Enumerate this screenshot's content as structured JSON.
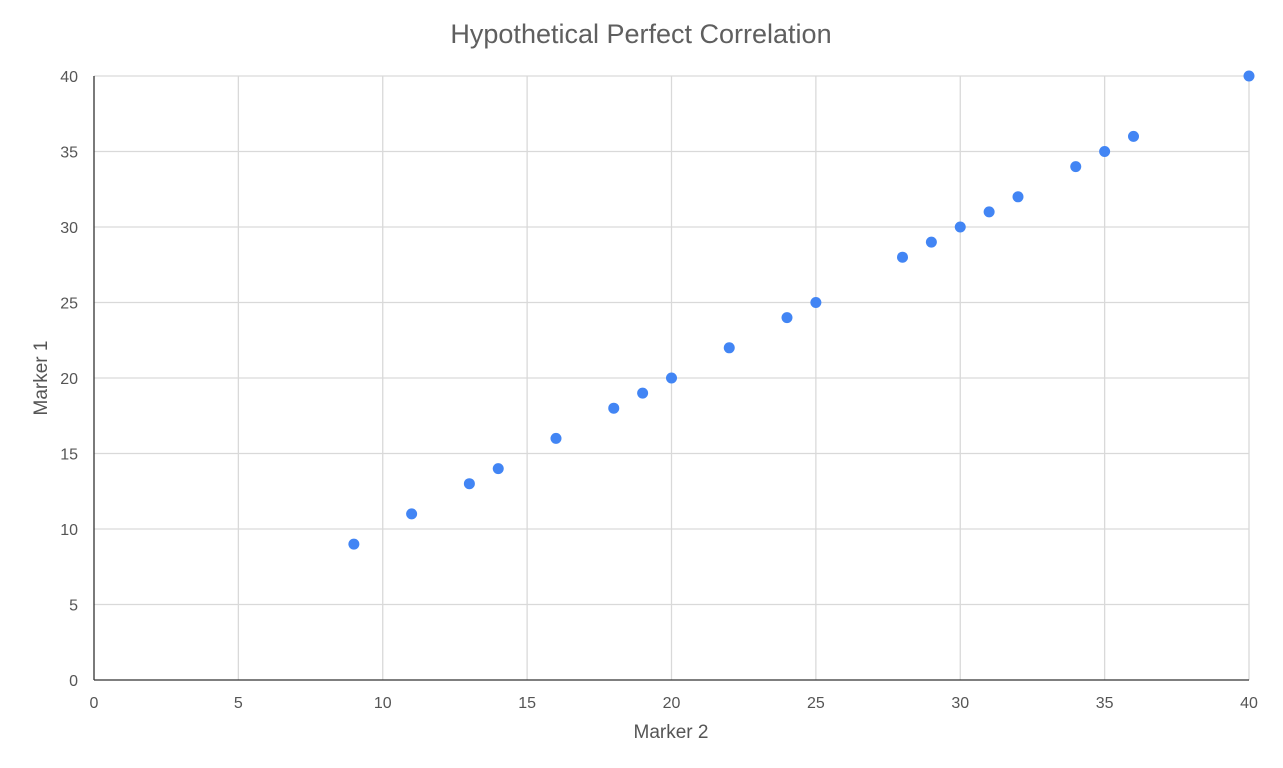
{
  "chart_data": {
    "type": "scatter",
    "title": "Hypothetical Perfect Correlation",
    "xlabel": "Marker 2",
    "ylabel": "Marker 1",
    "xlim": [
      0,
      40
    ],
    "ylim": [
      0,
      40
    ],
    "x_ticks": [
      0,
      5,
      10,
      15,
      20,
      25,
      30,
      35,
      40
    ],
    "y_ticks": [
      0,
      5,
      10,
      15,
      20,
      25,
      30,
      35,
      40
    ],
    "grid": true,
    "legend": "none",
    "point_color": "#4285f4",
    "series": [
      {
        "points": [
          {
            "x": 9,
            "y": 9
          },
          {
            "x": 11,
            "y": 11
          },
          {
            "x": 13,
            "y": 13
          },
          {
            "x": 14,
            "y": 14
          },
          {
            "x": 16,
            "y": 16
          },
          {
            "x": 18,
            "y": 18
          },
          {
            "x": 19,
            "y": 19
          },
          {
            "x": 20,
            "y": 20
          },
          {
            "x": 22,
            "y": 22
          },
          {
            "x": 24,
            "y": 24
          },
          {
            "x": 25,
            "y": 25
          },
          {
            "x": 28,
            "y": 28
          },
          {
            "x": 29,
            "y": 29
          },
          {
            "x": 30,
            "y": 30
          },
          {
            "x": 31,
            "y": 31
          },
          {
            "x": 32,
            "y": 32
          },
          {
            "x": 34,
            "y": 34
          },
          {
            "x": 35,
            "y": 35
          },
          {
            "x": 36,
            "y": 36
          },
          {
            "x": 40,
            "y": 40
          }
        ]
      }
    ]
  }
}
